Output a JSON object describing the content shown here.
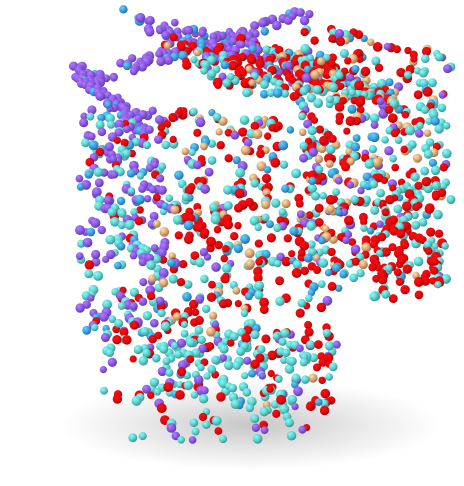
{
  "scene": {
    "type": "3d-point-cloud-render",
    "background": "#ffffff",
    "palette": {
      "red": "#e8080c",
      "teal": "#5fd3cf",
      "blue": "#3fa0de",
      "purple": "#8a5ae6",
      "tan": "#e0a878"
    },
    "colorOrder": [
      "purple",
      "blue",
      "teal",
      "tan",
      "red"
    ]
  }
}
